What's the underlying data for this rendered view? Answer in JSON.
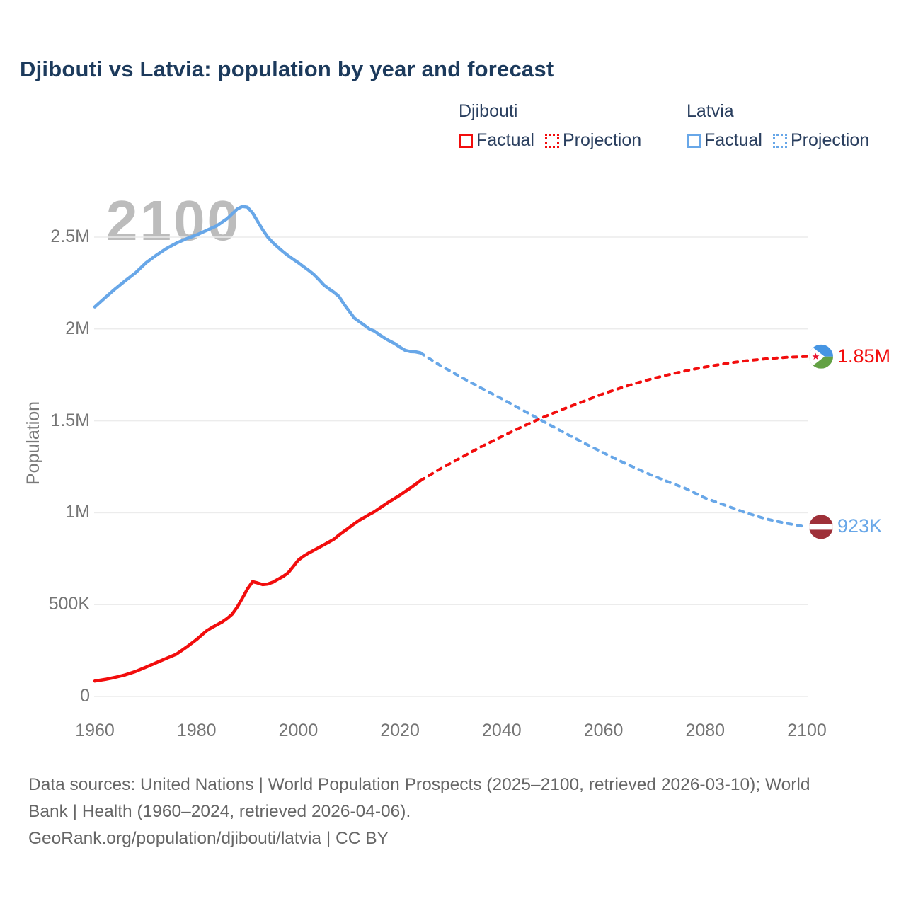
{
  "page": {
    "title": "Djibouti vs Latvia: population by year and forecast",
    "footer_line1": "Data sources: United Nations | World Population Prospects (2025–2100, retrieved 2026-03-10); World",
    "footer_line2": "Bank | Health (1960–2024, retrieved 2026-04-06).",
    "footer_line3": "GeoRank.org/population/djibouti/latvia | CC BY"
  },
  "colors": {
    "djibouti": "#f20d0d",
    "latvia": "#68a7e8",
    "grid": "#ececec",
    "title_text": "#1c3a5c",
    "axis_text": "#757575",
    "watermark_text": "#bcbcbc"
  },
  "legend": {
    "groups": [
      {
        "title": "Djibouti",
        "color": "#f20d0d",
        "items": [
          {
            "label": "Factual",
            "style": "solid"
          },
          {
            "label": "Projection",
            "style": "dotted"
          }
        ]
      },
      {
        "title": "Latvia",
        "color": "#68a7e8",
        "items": [
          {
            "label": "Factual",
            "style": "solid"
          },
          {
            "label": "Projection",
            "style": "dotted"
          }
        ]
      }
    ]
  },
  "chart_data": {
    "type": "line",
    "title": "Djibouti vs Latvia: population by year and forecast",
    "xlabel": "",
    "ylabel": "Population",
    "watermark": "2100",
    "xlim": [
      1960,
      2100
    ],
    "ylim": [
      0,
      2500000
    ],
    "grid": true,
    "legend_position": "top-right",
    "x_ticks": [
      1960,
      1980,
      2000,
      2020,
      2040,
      2060,
      2080,
      2100
    ],
    "y_ticks": [
      {
        "label": "0",
        "value": 0
      },
      {
        "label": "500K",
        "value": 500000
      },
      {
        "label": "1M",
        "value": 1000000
      },
      {
        "label": "1.5M",
        "value": 1500000
      },
      {
        "label": "2M",
        "value": 2000000
      },
      {
        "label": "2.5M",
        "value": 2500000
      }
    ],
    "series": [
      {
        "name": "Djibouti Factual",
        "color": "#f20d0d",
        "style": "solid",
        "points": [
          [
            1960,
            84000
          ],
          [
            1962,
            93000
          ],
          [
            1964,
            104000
          ],
          [
            1966,
            118000
          ],
          [
            1968,
            136000
          ],
          [
            1970,
            159000
          ],
          [
            1972,
            183000
          ],
          [
            1974,
            207000
          ],
          [
            1976,
            230000
          ],
          [
            1978,
            268000
          ],
          [
            1980,
            310000
          ],
          [
            1982,
            358000
          ],
          [
            1983,
            375000
          ],
          [
            1984,
            390000
          ],
          [
            1985,
            405000
          ],
          [
            1986,
            424000
          ],
          [
            1987,
            448000
          ],
          [
            1988,
            487000
          ],
          [
            1989,
            535000
          ],
          [
            1990,
            585000
          ],
          [
            1991,
            625000
          ],
          [
            1992,
            618000
          ],
          [
            1993,
            609000
          ],
          [
            1994,
            612000
          ],
          [
            1995,
            622000
          ],
          [
            1996,
            638000
          ],
          [
            1997,
            653000
          ],
          [
            1998,
            673000
          ],
          [
            1999,
            707000
          ],
          [
            2000,
            742000
          ],
          [
            2001,
            763000
          ],
          [
            2002,
            780000
          ],
          [
            2003,
            795000
          ],
          [
            2004,
            810000
          ],
          [
            2005,
            825000
          ],
          [
            2006,
            840000
          ],
          [
            2007,
            856000
          ],
          [
            2008,
            879000
          ],
          [
            2009,
            899000
          ],
          [
            2010,
            919000
          ],
          [
            2011,
            940000
          ],
          [
            2012,
            959000
          ],
          [
            2013,
            975000
          ],
          [
            2014,
            991000
          ],
          [
            2015,
            1006000
          ],
          [
            2016,
            1025000
          ],
          [
            2017,
            1044000
          ],
          [
            2018,
            1062000
          ],
          [
            2019,
            1079000
          ],
          [
            2020,
            1096000
          ],
          [
            2021,
            1115000
          ],
          [
            2022,
            1134000
          ],
          [
            2023,
            1154000
          ],
          [
            2024,
            1175000
          ]
        ]
      },
      {
        "name": "Djibouti Projection",
        "color": "#f20d0d",
        "style": "dotted",
        "points": [
          [
            2024,
            1175000
          ],
          [
            2028,
            1240000
          ],
          [
            2032,
            1300000
          ],
          [
            2036,
            1360000
          ],
          [
            2040,
            1415000
          ],
          [
            2044,
            1468000
          ],
          [
            2048,
            1518000
          ],
          [
            2052,
            1563000
          ],
          [
            2056,
            1605000
          ],
          [
            2060,
            1648000
          ],
          [
            2064,
            1685000
          ],
          [
            2068,
            1718000
          ],
          [
            2072,
            1746000
          ],
          [
            2076,
            1771000
          ],
          [
            2080,
            1793000
          ],
          [
            2084,
            1812000
          ],
          [
            2088,
            1827000
          ],
          [
            2092,
            1838000
          ],
          [
            2096,
            1846000
          ],
          [
            2100,
            1850000
          ]
        ]
      },
      {
        "name": "Latvia Factual",
        "color": "#68a7e8",
        "style": "solid",
        "points": [
          [
            1960,
            2120000
          ],
          [
            1962,
            2170000
          ],
          [
            1964,
            2218000
          ],
          [
            1966,
            2263000
          ],
          [
            1968,
            2306000
          ],
          [
            1970,
            2359000
          ],
          [
            1972,
            2400000
          ],
          [
            1974,
            2437000
          ],
          [
            1976,
            2467000
          ],
          [
            1978,
            2491000
          ],
          [
            1980,
            2512000
          ],
          [
            1982,
            2537000
          ],
          [
            1984,
            2562000
          ],
          [
            1986,
            2600000
          ],
          [
            1988,
            2653000
          ],
          [
            1989,
            2667000
          ],
          [
            1990,
            2663000
          ],
          [
            1991,
            2632000
          ],
          [
            1992,
            2586000
          ],
          [
            1993,
            2540000
          ],
          [
            1994,
            2500000
          ],
          [
            1995,
            2470000
          ],
          [
            1996,
            2445000
          ],
          [
            1997,
            2421000
          ],
          [
            1998,
            2399000
          ],
          [
            1999,
            2380000
          ],
          [
            2000,
            2361000
          ],
          [
            2001,
            2340000
          ],
          [
            2002,
            2320000
          ],
          [
            2003,
            2298000
          ],
          [
            2004,
            2270000
          ],
          [
            2005,
            2240000
          ],
          [
            2006,
            2219000
          ],
          [
            2007,
            2200000
          ],
          [
            2008,
            2177000
          ],
          [
            2009,
            2135000
          ],
          [
            2010,
            2097000
          ],
          [
            2011,
            2060000
          ],
          [
            2012,
            2040000
          ],
          [
            2013,
            2020000
          ],
          [
            2014,
            2000000
          ],
          [
            2015,
            1988000
          ],
          [
            2016,
            1968000
          ],
          [
            2017,
            1950000
          ],
          [
            2018,
            1934000
          ],
          [
            2019,
            1920000
          ],
          [
            2020,
            1901000
          ],
          [
            2021,
            1884000
          ],
          [
            2022,
            1877000
          ],
          [
            2023,
            1876000
          ],
          [
            2024,
            1870000
          ]
        ]
      },
      {
        "name": "Latvia Projection",
        "color": "#68a7e8",
        "style": "dotted",
        "points": [
          [
            2024,
            1870000
          ],
          [
            2028,
            1800000
          ],
          [
            2032,
            1738000
          ],
          [
            2036,
            1678000
          ],
          [
            2040,
            1620000
          ],
          [
            2044,
            1560000
          ],
          [
            2048,
            1500000
          ],
          [
            2052,
            1440000
          ],
          [
            2056,
            1382000
          ],
          [
            2060,
            1326000
          ],
          [
            2064,
            1272000
          ],
          [
            2068,
            1222000
          ],
          [
            2072,
            1176000
          ],
          [
            2076,
            1134000
          ],
          [
            2080,
            1080000
          ],
          [
            2084,
            1040000
          ],
          [
            2088,
            1000000
          ],
          [
            2092,
            966000
          ],
          [
            2096,
            942000
          ],
          [
            2100,
            923000
          ]
        ]
      }
    ],
    "end_labels": [
      {
        "country": "Djibouti",
        "text": "1.85M",
        "value": 1850000,
        "color": "#f20d0d",
        "flag": "djibouti-flag"
      },
      {
        "country": "Latvia",
        "text": "923K",
        "value": 923000,
        "color": "#68a7e8",
        "flag": "latvia-flag"
      }
    ]
  }
}
